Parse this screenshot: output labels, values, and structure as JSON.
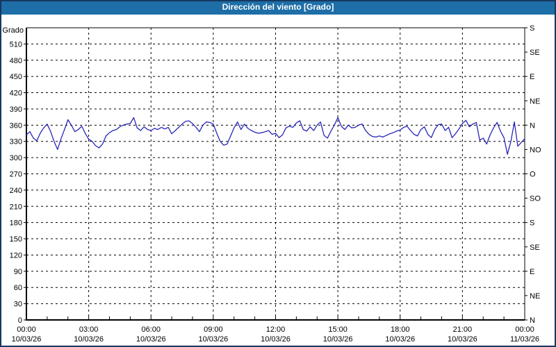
{
  "window": {
    "title": "Dirección del viento [Grado]"
  },
  "colors": {
    "titlebar_bg": "#1e6ea7",
    "titlebar_text": "#ffffff",
    "frame_border": "#17375e",
    "plot_bg": "#ffffff",
    "line": "#2626b8",
    "grid": "#000000",
    "axis": "#000000",
    "text": "#000000"
  },
  "chart_data": {
    "type": "line",
    "title": "Dirección del viento [Grado]",
    "ylabel": "Grado",
    "y_min": 0,
    "y_max": 540,
    "y_tick_step": 30,
    "grid": "dashed",
    "legend_position": "none",
    "y_ticks_left": [
      0,
      30,
      60,
      90,
      120,
      150,
      180,
      210,
      240,
      270,
      300,
      330,
      360,
      390,
      420,
      450,
      480,
      510
    ],
    "right_axis_labels": [
      {
        "value": 0,
        "label": "N"
      },
      {
        "value": 45,
        "label": "NE"
      },
      {
        "value": 90,
        "label": "E"
      },
      {
        "value": 135,
        "label": "SE"
      },
      {
        "value": 180,
        "label": "S"
      },
      {
        "value": 225,
        "label": "SO"
      },
      {
        "value": 270,
        "label": "O"
      },
      {
        "value": 315,
        "label": "NO"
      },
      {
        "value": 360,
        "label": "N"
      },
      {
        "value": 405,
        "label": "NE"
      },
      {
        "value": 450,
        "label": "E"
      },
      {
        "value": 495,
        "label": "SE"
      },
      {
        "value": 540,
        "label": "S"
      }
    ],
    "x_ticks": [
      {
        "hour": 0,
        "time": "00:00",
        "date": "10/03/26"
      },
      {
        "hour": 3,
        "time": "03:00",
        "date": "10/03/26"
      },
      {
        "hour": 6,
        "time": "06:00",
        "date": "10/03/26"
      },
      {
        "hour": 9,
        "time": "09:00",
        "date": "10/03/26"
      },
      {
        "hour": 12,
        "time": "12:00",
        "date": "10/03/26"
      },
      {
        "hour": 15,
        "time": "15:00",
        "date": "10/03/26"
      },
      {
        "hour": 18,
        "time": "18:00",
        "date": "10/03/26"
      },
      {
        "hour": 21,
        "time": "21:00",
        "date": "10/03/26"
      },
      {
        "hour": 24,
        "time": "00:00",
        "date": "11/03/26"
      }
    ],
    "x_minor_tick_step_hours": 1,
    "x_grid_step_hours": 3,
    "series": [
      {
        "name": "Dirección del viento [Grado]",
        "color": "#2626b8",
        "start_hour": 0,
        "step_minutes": 10,
        "values": [
          342,
          348,
          336,
          331,
          345,
          355,
          362,
          348,
          330,
          315,
          335,
          352,
          370,
          360,
          348,
          352,
          358,
          345,
          334,
          330,
          322,
          318,
          325,
          340,
          346,
          350,
          352,
          357,
          360,
          362,
          363,
          374,
          355,
          350,
          357,
          352,
          350,
          354,
          352,
          356,
          353,
          356,
          344,
          350,
          356,
          362,
          367,
          368,
          363,
          356,
          348,
          360,
          366,
          365,
          362,
          345,
          330,
          323,
          325,
          340,
          355,
          366,
          352,
          362,
          354,
          350,
          347,
          345,
          346,
          348,
          350,
          343,
          345,
          337,
          342,
          355,
          358,
          356,
          364,
          368,
          352,
          349,
          357,
          350,
          360,
          366,
          341,
          336,
          349,
          360,
          374,
          358,
          352,
          360,
          355,
          356,
          360,
          362,
          350,
          343,
          339,
          338,
          340,
          338,
          341,
          344,
          346,
          349,
          351,
          356,
          358,
          350,
          343,
          340,
          352,
          357,
          343,
          337,
          352,
          361,
          362,
          350,
          356,
          337,
          344,
          353,
          363,
          369,
          357,
          362,
          365,
          332,
          336,
          325,
          342,
          355,
          365,
          349,
          337,
          306,
          330,
          366,
          321,
          328,
          335
        ]
      }
    ]
  }
}
